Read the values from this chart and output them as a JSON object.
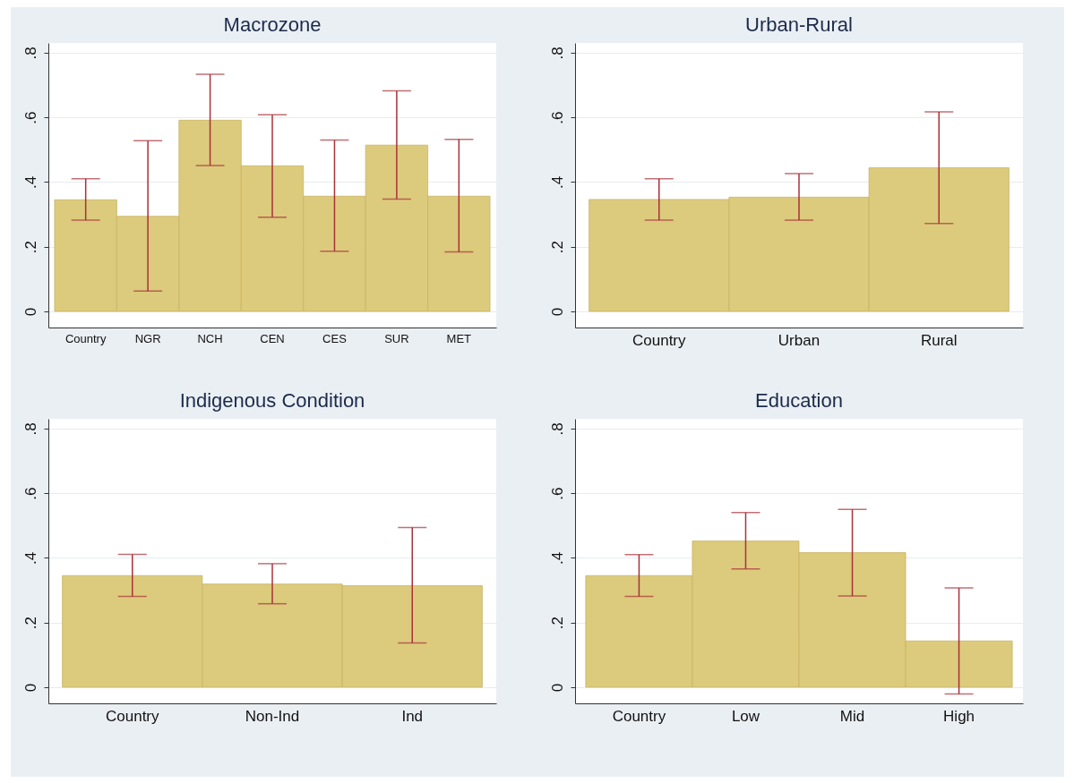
{
  "chart_data": [
    {
      "type": "bar",
      "title": "Macrozone",
      "categories": [
        "Country",
        "NGR",
        "NCH",
        "CEN",
        "CES",
        "SUR",
        "MET"
      ],
      "series": [
        {
          "color": "#dccb7c",
          "values": [
            0.345,
            0.294,
            0.591,
            0.45,
            0.356,
            0.514,
            0.356
          ],
          "errors": [
            [
              0.282,
              0.41
            ],
            [
              0.063,
              0.528
            ],
            [
              0.451,
              0.733
            ],
            [
              0.291,
              0.608
            ],
            [
              0.186,
              0.53
            ],
            [
              0.347,
              0.682
            ],
            [
              0.184,
              0.532
            ]
          ]
        }
      ],
      "ylim": [
        -0.05,
        0.83
      ],
      "yticks": [
        {
          "value": 0,
          "label": "0"
        },
        {
          "value": 0.2,
          "label": ".2"
        },
        {
          "value": 0.4,
          "label": ".4"
        },
        {
          "value": 0.6,
          "label": ".6"
        },
        {
          "value": 0.8,
          "label": ".8"
        }
      ],
      "grid": "y"
    },
    {
      "type": "bar",
      "title": "Urban-Rural",
      "categories": [
        "Country",
        "Urban",
        "Rural"
      ],
      "series": [
        {
          "color": "#dccb7c",
          "values": [
            0.346,
            0.353,
            0.444
          ],
          "errors": [
            [
              0.282,
              0.41
            ],
            [
              0.282,
              0.426
            ],
            [
              0.272,
              0.617
            ]
          ]
        }
      ],
      "ylim": [
        -0.05,
        0.83
      ],
      "yticks": [
        {
          "value": 0,
          "label": "0"
        },
        {
          "value": 0.2,
          "label": ".2"
        },
        {
          "value": 0.4,
          "label": ".4"
        },
        {
          "value": 0.6,
          "label": ".6"
        },
        {
          "value": 0.8,
          "label": ".8"
        }
      ],
      "grid": "y"
    },
    {
      "type": "bar",
      "title": "Indigenous Condition",
      "categories": [
        "Country",
        "Non-Ind",
        "Ind"
      ],
      "series": [
        {
          "color": "#dccb7c",
          "values": [
            0.345,
            0.319,
            0.314
          ],
          "errors": [
            [
              0.281,
              0.411
            ],
            [
              0.258,
              0.382
            ],
            [
              0.137,
              0.494
            ]
          ]
        }
      ],
      "ylim": [
        -0.05,
        0.83
      ],
      "yticks": [
        {
          "value": 0,
          "label": "0"
        },
        {
          "value": 0.2,
          "label": ".2"
        },
        {
          "value": 0.4,
          "label": ".4"
        },
        {
          "value": 0.6,
          "label": ".6"
        },
        {
          "value": 0.8,
          "label": ".8"
        }
      ],
      "grid": "y"
    },
    {
      "type": "bar",
      "title": "Education",
      "categories": [
        "Country",
        "Low",
        "Mid",
        "High"
      ],
      "series": [
        {
          "color": "#dccb7c",
          "values": [
            0.345,
            0.452,
            0.416,
            0.143
          ],
          "errors": [
            [
              0.281,
              0.41
            ],
            [
              0.366,
              0.54
            ],
            [
              0.282,
              0.55
            ],
            [
              -0.021,
              0.307
            ]
          ]
        }
      ],
      "ylim": [
        -0.05,
        0.83
      ],
      "yticks": [
        {
          "value": 0,
          "label": "0"
        },
        {
          "value": 0.2,
          "label": ".2"
        },
        {
          "value": 0.4,
          "label": ".4"
        },
        {
          "value": 0.6,
          "label": ".6"
        },
        {
          "value": 0.8,
          "label": ".8"
        }
      ],
      "grid": "y"
    }
  ]
}
